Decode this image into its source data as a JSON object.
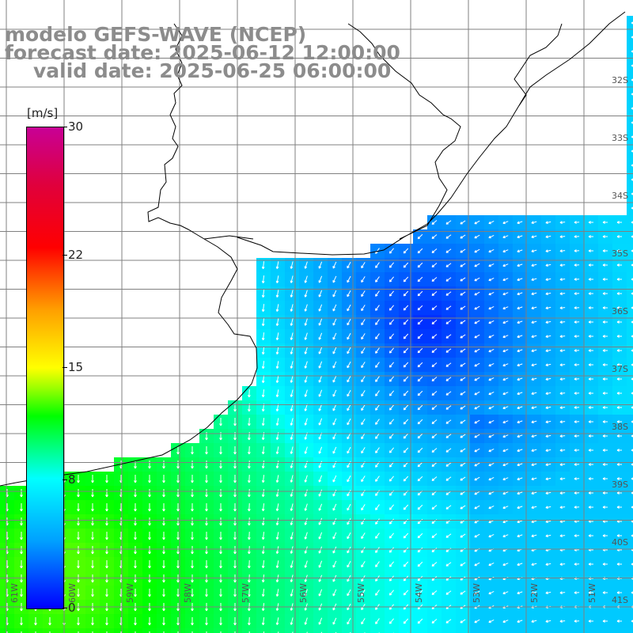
{
  "title": {
    "model": "modelo GEFS-WAVE (NCEP)",
    "forecast": "forecast date: 2025-06-12 12:00:00",
    "valid": "valid date: 2025-06-25 06:00:00"
  },
  "colorbar": {
    "unit": "[m/s]",
    "min": 0,
    "max": 30,
    "ticks": [
      {
        "label": "30",
        "value": 30
      },
      {
        "label": "22",
        "value": 22
      },
      {
        "label": "15",
        "value": 15
      },
      {
        "label": "8",
        "value": 8
      },
      {
        "label": "0",
        "value": 0
      }
    ]
  },
  "map": {
    "lat_labels": [
      "32S",
      "33S",
      "34S",
      "35S",
      "36S",
      "37S",
      "38S",
      "39S",
      "40S",
      "41S"
    ],
    "lon_labels": [
      "61W",
      "60W",
      "59W",
      "58W",
      "57W",
      "56W",
      "55W",
      "54W",
      "53W",
      "52W",
      "51W"
    ]
  }
}
